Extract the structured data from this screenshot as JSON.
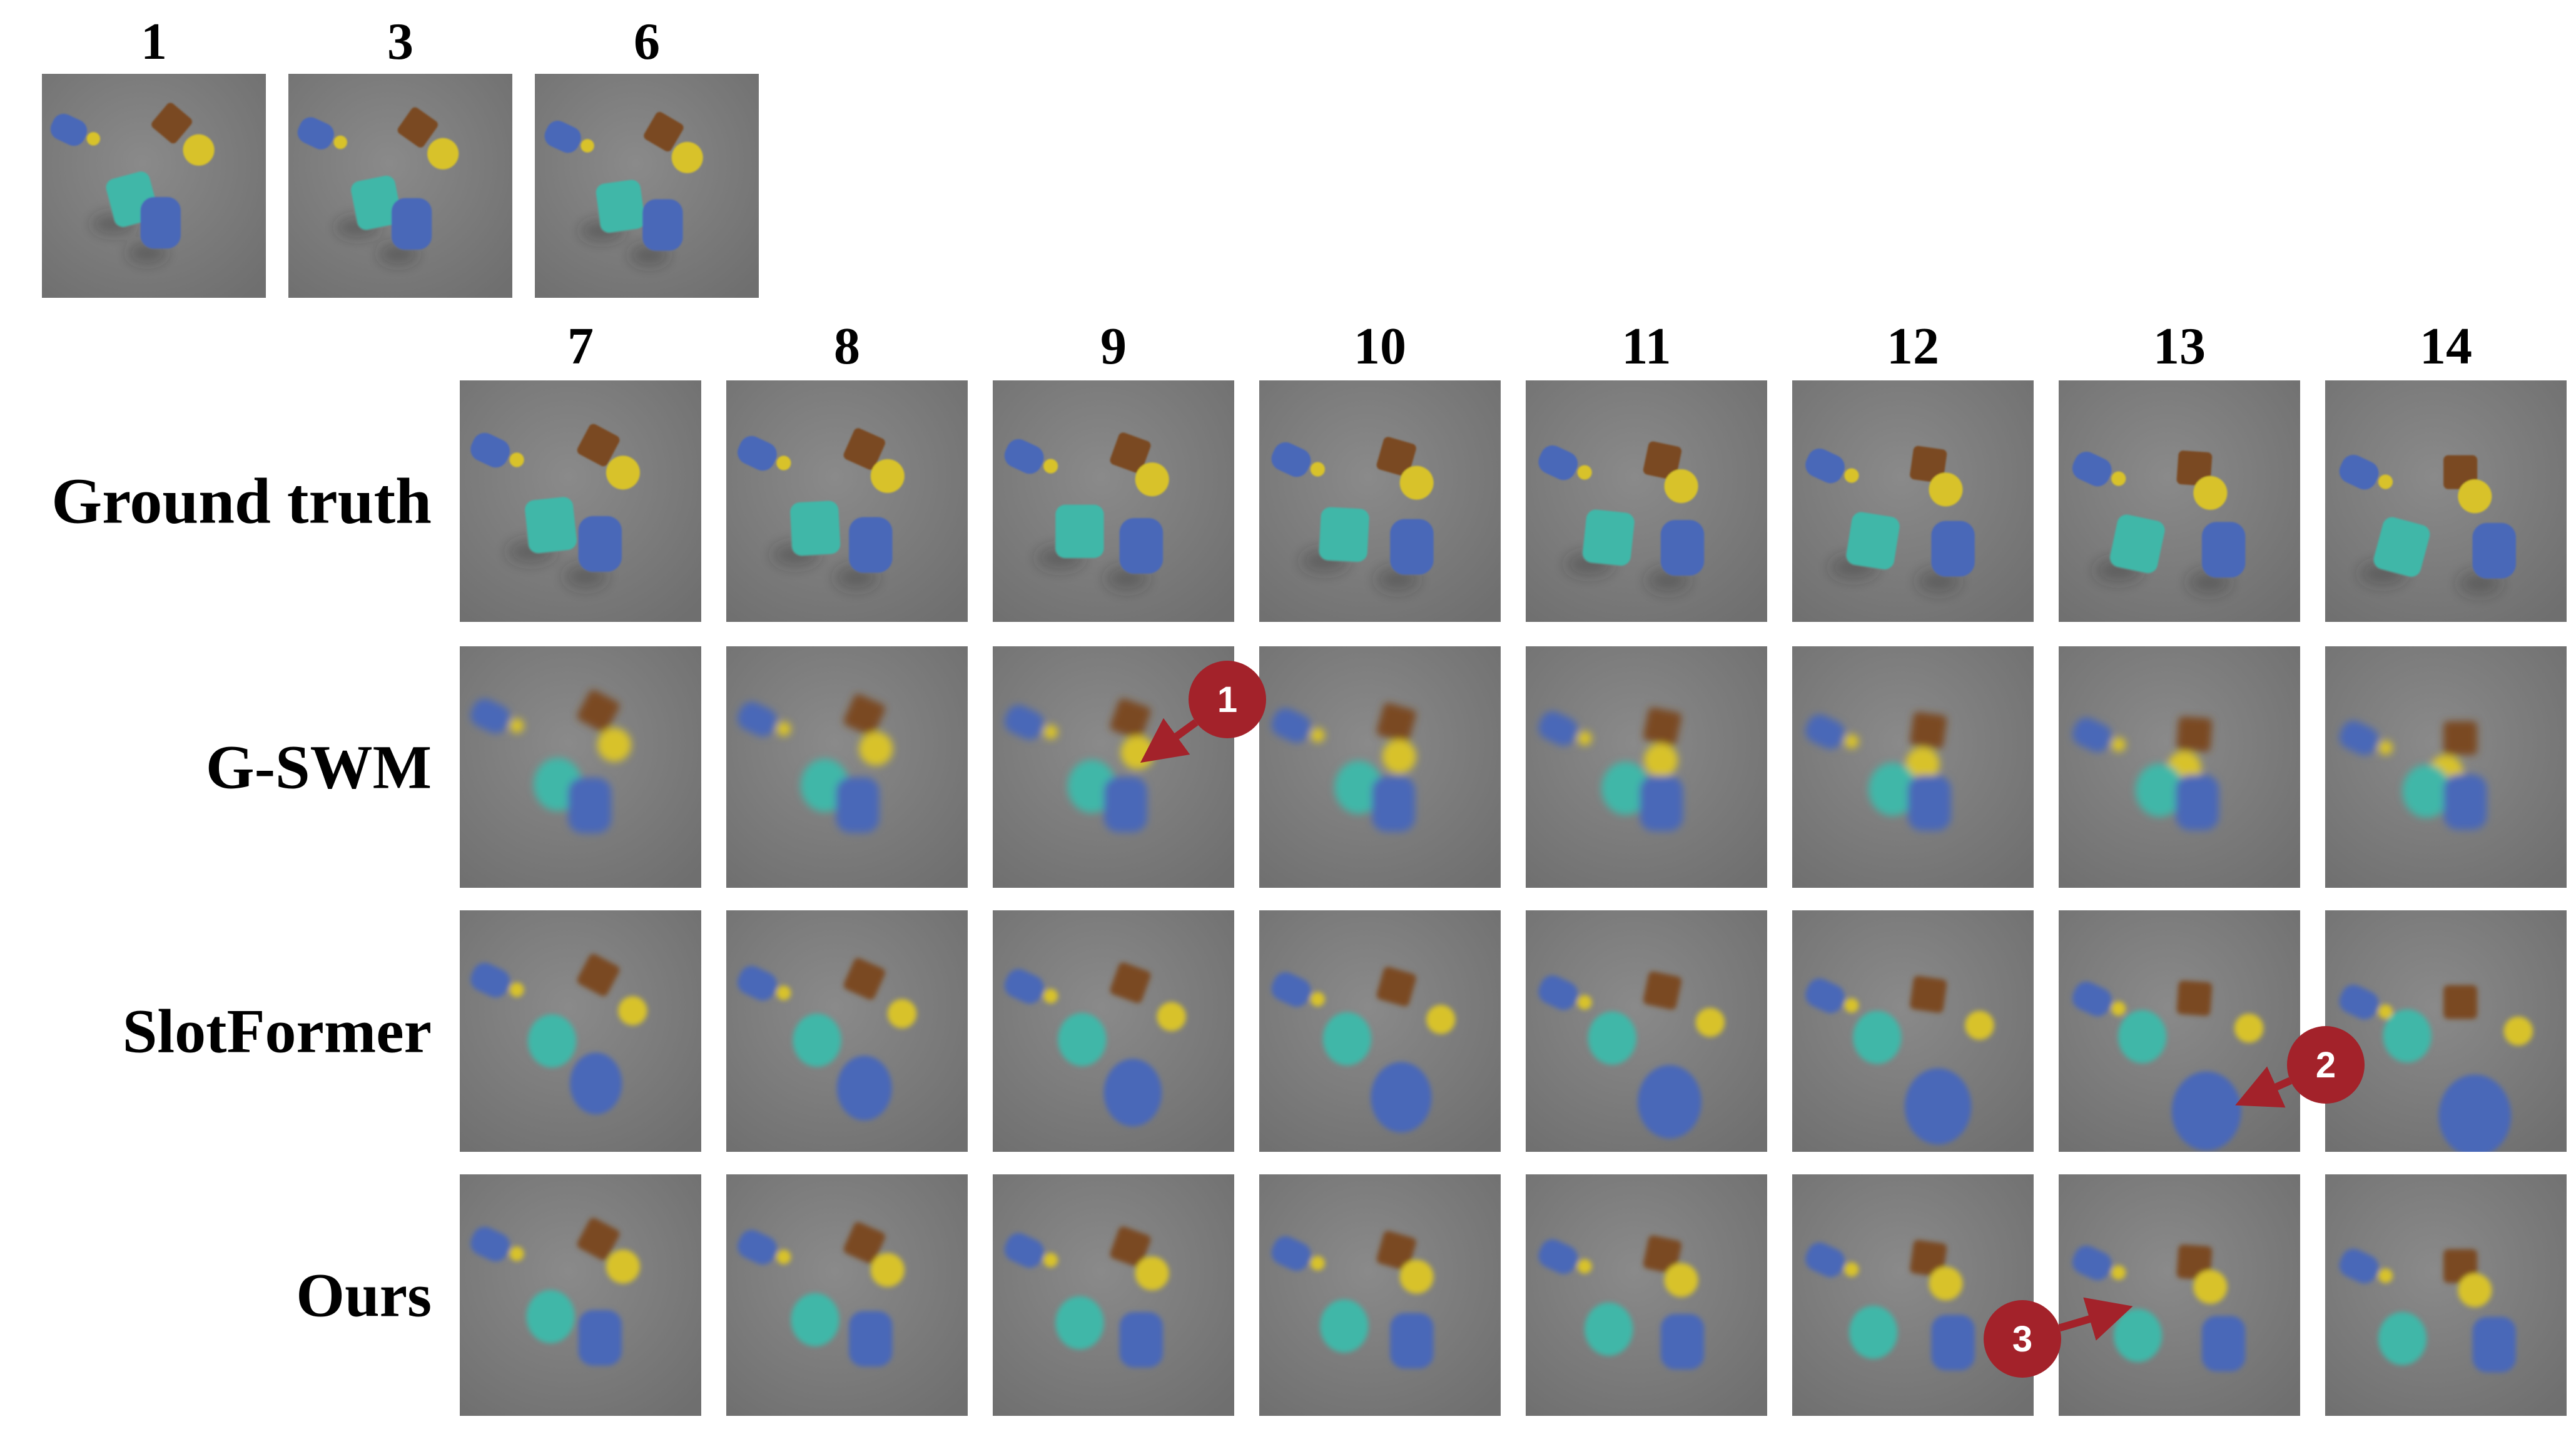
{
  "context_frames": [
    "1",
    "3",
    "6"
  ],
  "predicted_frames": [
    "7",
    "8",
    "9",
    "10",
    "11",
    "12",
    "13",
    "14"
  ],
  "rows": [
    {
      "label": "Ground truth",
      "mode": "gt"
    },
    {
      "label": "G-SWM",
      "mode": "gswm"
    },
    {
      "label": "SlotFormer",
      "mode": "slotformer"
    },
    {
      "label": "Ours",
      "mode": "ours"
    }
  ],
  "annotations": [
    {
      "number": "1",
      "row": "G-SWM",
      "frame": "9"
    },
    {
      "number": "2",
      "row": "SlotFormer",
      "frame": "13"
    },
    {
      "number": "3",
      "row": "Ours",
      "frame": "13"
    }
  ],
  "colors": {
    "background": "#ffffff",
    "floor": "#6f6f6f",
    "blue_object": "#4a68b8",
    "teal_object": "#3fb7a8",
    "yellow_object": "#d8c22a",
    "brown_object": "#7a4a22",
    "callout": "#a3222a"
  }
}
